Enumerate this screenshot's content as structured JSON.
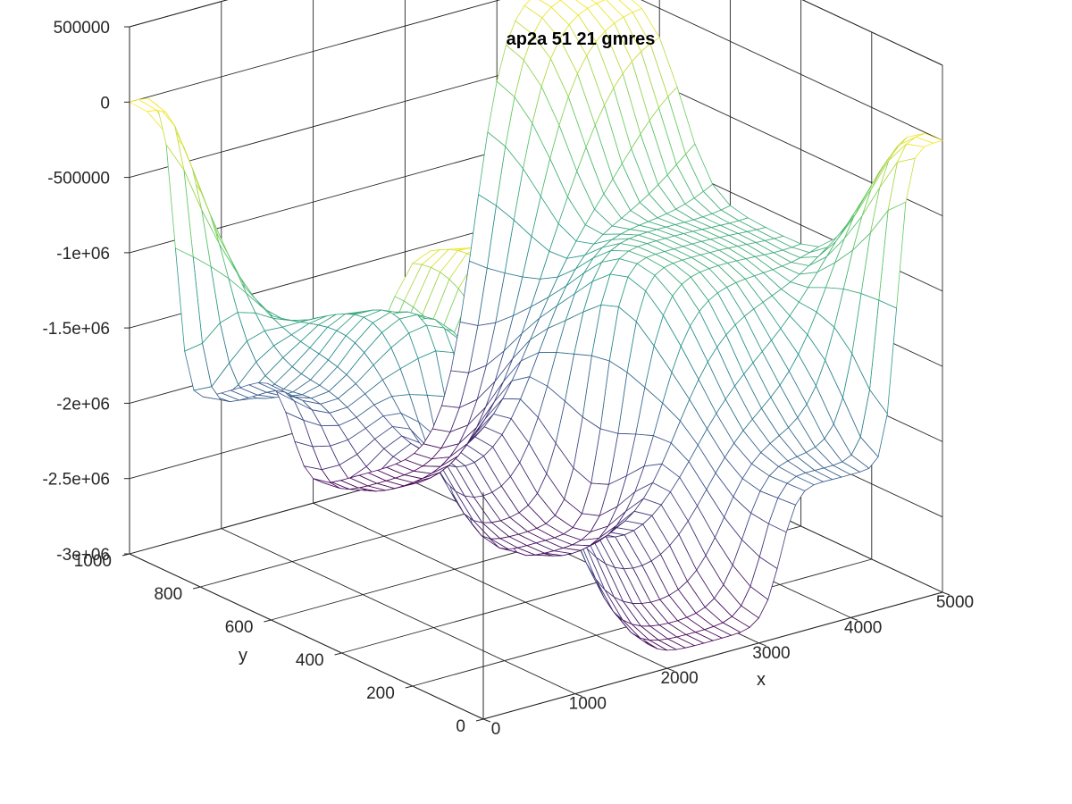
{
  "chart_data": {
    "type": "surface",
    "render": "mesh",
    "title": "ap2a 51 21 gmres",
    "xlabel": "x",
    "ylabel": "y",
    "zlabel": "",
    "xlim": [
      0,
      5000
    ],
    "ylim": [
      0,
      1000
    ],
    "zlim": [
      -3000000,
      500000
    ],
    "xticks": [
      0,
      1000,
      2000,
      3000,
      4000,
      5000
    ],
    "xtick_labels": [
      "0",
      "1000",
      "2000",
      "3000",
      "4000",
      "5000"
    ],
    "yticks": [
      0,
      200,
      400,
      600,
      800,
      1000
    ],
    "ytick_labels": [
      "0",
      "200",
      "400",
      "600",
      "800",
      "1000"
    ],
    "zticks": [
      -3000000,
      -2500000,
      -2000000,
      -1500000,
      -1000000,
      -500000,
      0,
      500000
    ],
    "ztick_labels": [
      "-3e+06",
      "-2.5e+06",
      "-2e+06",
      "-1.5e+06",
      "-1e+06",
      "-500000",
      "0",
      "500000"
    ],
    "grid": true,
    "colormap": "viridis",
    "mesh": {
      "nx": 51,
      "ny": 21
    },
    "surface_samples": [
      {
        "x": 0,
        "y": 1000,
        "z": 0
      },
      {
        "x": 0,
        "y": 0,
        "z": 0
      },
      {
        "x": 5000,
        "y": 0,
        "z": 0
      },
      {
        "x": 5000,
        "y": 1000,
        "z": 0
      },
      {
        "x": 2500,
        "y": 500,
        "z": -2800000
      },
      {
        "x": 2500,
        "y": 1000,
        "z": -2900000
      },
      {
        "x": 2500,
        "y": 0,
        "z": -2900000
      },
      {
        "x": 1000,
        "y": 500,
        "z": -1100000
      },
      {
        "x": 4000,
        "y": 500,
        "z": -1100000
      },
      {
        "x": 1000,
        "y": 1000,
        "z": -2100000
      },
      {
        "x": 4000,
        "y": 0,
        "z": -2050000
      }
    ],
    "colors": {
      "low": "#440154",
      "mid": "#21918c",
      "high": "#fde725",
      "axis": "#262626"
    }
  }
}
